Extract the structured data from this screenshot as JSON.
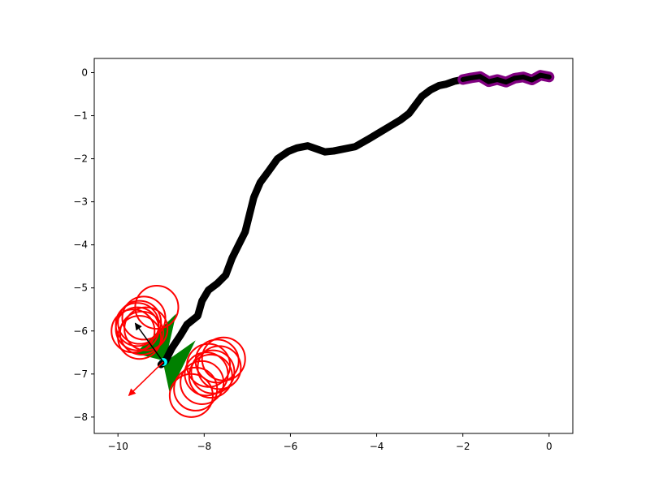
{
  "chart_data": {
    "type": "scatter",
    "title": "",
    "xlabel": "",
    "ylabel": "",
    "xlim": [
      -10.55,
      0.55
    ],
    "ylim": [
      -8.38,
      0.33
    ],
    "x_ticks": [
      -10,
      -8,
      -6,
      -4,
      -2,
      0
    ],
    "y_ticks": [
      0,
      -1,
      -2,
      -3,
      -4,
      -5,
      -6,
      -7,
      -8
    ],
    "x_tick_labels": [
      "−10",
      "−8",
      "−6",
      "−4",
      "−2",
      "0"
    ],
    "y_tick_labels": [
      "0",
      "−1",
      "−2",
      "−3",
      "−4",
      "−5",
      "−6",
      "−7",
      "−8"
    ],
    "grid": false,
    "legend": "none",
    "colors": {
      "trajectory": "#000000",
      "recent_trajectory": "#800080",
      "obstacle_circles": "#ff0000",
      "sector_wedges": "#008000",
      "agent_marker": "#00ffff",
      "heading_arrow": "#000000",
      "goal_arrow": "#ff0000"
    },
    "trajectory": [
      [
        0.0,
        -0.1
      ],
      [
        -0.2,
        -0.06
      ],
      [
        -0.4,
        -0.17
      ],
      [
        -0.6,
        -0.1
      ],
      [
        -0.8,
        -0.13
      ],
      [
        -1.0,
        -0.22
      ],
      [
        -1.2,
        -0.16
      ],
      [
        -1.4,
        -0.21
      ],
      [
        -1.6,
        -0.09
      ],
      [
        -1.8,
        -0.12
      ],
      [
        -2.0,
        -0.16
      ],
      [
        -2.2,
        -0.2
      ],
      [
        -2.4,
        -0.27
      ],
      [
        -2.55,
        -0.3
      ],
      [
        -2.75,
        -0.4
      ],
      [
        -2.95,
        -0.55
      ],
      [
        -3.1,
        -0.75
      ],
      [
        -3.25,
        -0.95
      ],
      [
        -3.45,
        -1.1
      ],
      [
        -3.7,
        -1.25
      ],
      [
        -3.95,
        -1.4
      ],
      [
        -4.2,
        -1.55
      ],
      [
        -4.5,
        -1.72
      ],
      [
        -4.8,
        -1.78
      ],
      [
        -5.0,
        -1.82
      ],
      [
        -5.2,
        -1.84
      ],
      [
        -5.4,
        -1.77
      ],
      [
        -5.6,
        -1.7
      ],
      [
        -5.85,
        -1.75
      ],
      [
        -6.05,
        -1.83
      ],
      [
        -6.3,
        -2.0
      ],
      [
        -6.5,
        -2.28
      ],
      [
        -6.7,
        -2.55
      ],
      [
        -6.85,
        -2.9
      ],
      [
        -6.95,
        -3.3
      ],
      [
        -7.05,
        -3.7
      ],
      [
        -7.2,
        -4.0
      ],
      [
        -7.35,
        -4.3
      ],
      [
        -7.5,
        -4.7
      ],
      [
        -7.7,
        -4.9
      ],
      [
        -7.9,
        -5.05
      ],
      [
        -8.05,
        -5.3
      ],
      [
        -8.15,
        -5.65
      ],
      [
        -8.4,
        -5.85
      ],
      [
        -8.55,
        -6.1
      ],
      [
        -8.75,
        -6.4
      ],
      [
        -8.9,
        -6.7
      ],
      [
        -9.0,
        -6.78
      ]
    ],
    "recent_trajectory": [
      [
        0.0,
        -0.1
      ],
      [
        -0.2,
        -0.06
      ],
      [
        -0.4,
        -0.17
      ],
      [
        -0.6,
        -0.1
      ],
      [
        -0.8,
        -0.13
      ],
      [
        -1.0,
        -0.22
      ],
      [
        -1.2,
        -0.16
      ],
      [
        -1.4,
        -0.21
      ],
      [
        -1.6,
        -0.09
      ],
      [
        -1.8,
        -0.12
      ],
      [
        -2.0,
        -0.16
      ]
    ],
    "agent_position": [
      -8.95,
      -6.72
    ],
    "obstacle_circles": [
      [
        -9.1,
        -5.45
      ],
      [
        -9.4,
        -5.7
      ],
      [
        -9.5,
        -5.8
      ],
      [
        -9.55,
        -5.95
      ],
      [
        -9.65,
        -6.0
      ],
      [
        -9.45,
        -6.05
      ],
      [
        -9.5,
        -6.15
      ],
      [
        -9.55,
        -5.85
      ],
      [
        -9.35,
        -5.95
      ],
      [
        -7.55,
        -6.65
      ],
      [
        -7.7,
        -6.7
      ],
      [
        -7.65,
        -6.85
      ],
      [
        -7.8,
        -6.95
      ],
      [
        -7.85,
        -7.05
      ],
      [
        -7.95,
        -7.0
      ],
      [
        -8.05,
        -7.2
      ],
      [
        -8.2,
        -7.35
      ],
      [
        -8.3,
        -7.5
      ],
      [
        -7.9,
        -6.8
      ]
    ],
    "obstacle_radius": 0.5,
    "sector_wedges": [
      [
        [
          -8.9,
          -6.7
        ],
        [
          -9.6,
          -6.52
        ],
        [
          -8.65,
          -5.6
        ]
      ],
      [
        [
          -8.95,
          -6.75
        ],
        [
          -8.2,
          -6.22
        ],
        [
          -8.8,
          -7.45
        ]
      ]
    ],
    "heading_arrow": {
      "from": [
        -8.95,
        -6.72
      ],
      "to": [
        -9.6,
        -5.82
      ]
    },
    "goal_arrow": {
      "from": [
        -8.95,
        -6.72
      ],
      "to": [
        -9.75,
        -7.5
      ]
    }
  }
}
